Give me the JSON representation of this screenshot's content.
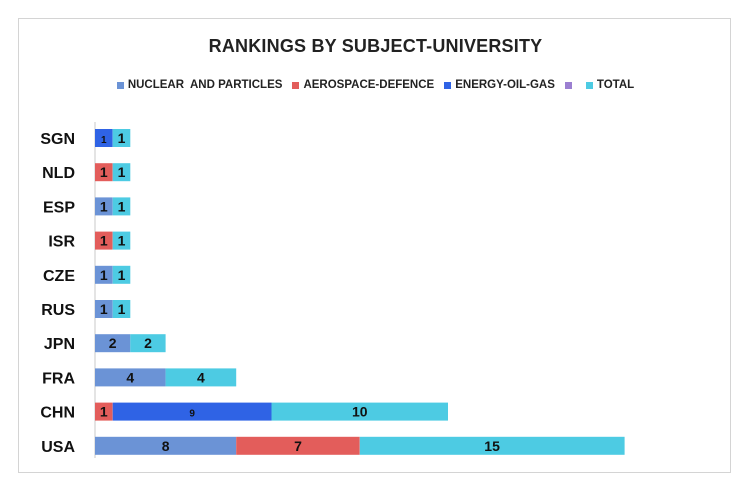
{
  "chart_data": {
    "type": "bar",
    "orientation": "horizontal",
    "stacked": true,
    "title": "RANKINGS BY SUBJECT-UNIVERSITY",
    "categories": [
      "SGN",
      "NLD",
      "ESP",
      "ISR",
      "CZE",
      "RUS",
      "JPN",
      "FRA",
      "CHN",
      "USA"
    ],
    "series": [
      {
        "name": "NUCLEAR  AND PARTICLES",
        "color": "#6b93d6",
        "values": [
          null,
          null,
          1,
          null,
          1,
          1,
          2,
          4,
          null,
          8
        ]
      },
      {
        "name": "AEROSPACE-DEFENCE",
        "color": "#e35d5b",
        "values": [
          null,
          1,
          null,
          1,
          null,
          null,
          null,
          null,
          1,
          7
        ]
      },
      {
        "name": "ENERGY-OIL-GAS",
        "color": "#2f63e5",
        "values": [
          1,
          null,
          null,
          null,
          null,
          null,
          null,
          null,
          9,
          null
        ]
      },
      {
        "name": "",
        "color": "#9b7fd1",
        "values": [
          null,
          null,
          null,
          null,
          null,
          null,
          null,
          null,
          null,
          null
        ]
      },
      {
        "name": "TOTAL",
        "color": "#4dcbe3",
        "values": [
          1,
          1,
          1,
          1,
          1,
          1,
          2,
          4,
          10,
          15
        ]
      }
    ],
    "xlim": [
      0,
      30
    ],
    "grid": false,
    "legend_position": "top"
  }
}
